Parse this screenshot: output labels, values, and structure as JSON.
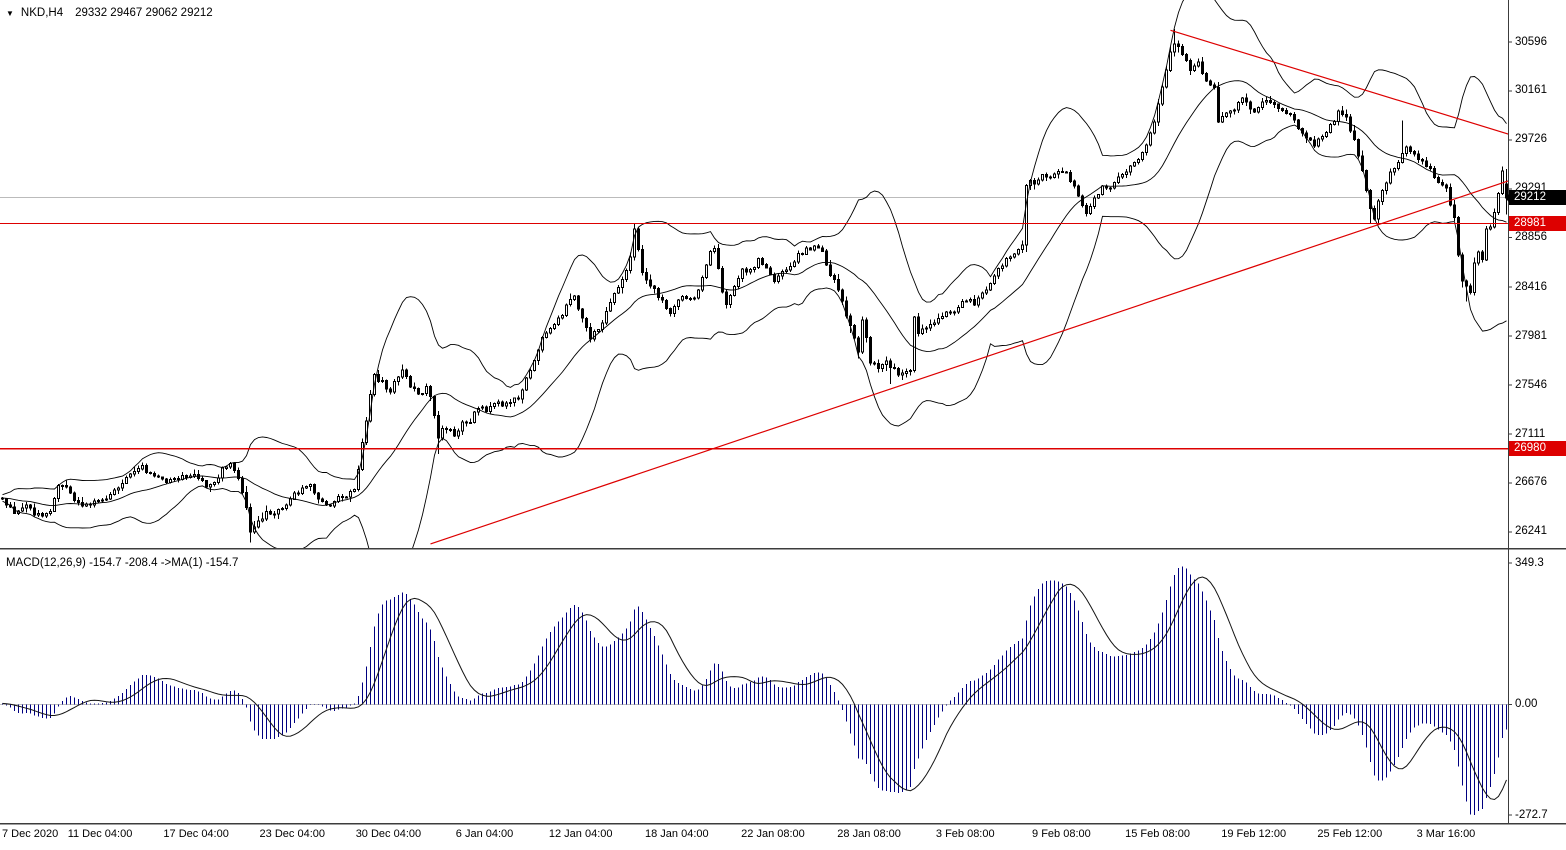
{
  "header": {
    "marker": "▼",
    "symbol": "NKD,H4",
    "open": "29332",
    "high": "29467",
    "low": "29062",
    "close": "29212"
  },
  "macd_panel": {
    "label": "MACD(12,26,9) -154.7 -208.4  ->MA(1) -154.7",
    "axis_labels": [
      "349.3",
      "0.00",
      "-272.7"
    ],
    "axis_values": [
      349.3,
      0,
      -272.7
    ]
  },
  "price_axis": {
    "labels": [
      30596,
      30161,
      29726,
      29291,
      28856,
      28416,
      27981,
      27546,
      27111,
      26676,
      26241
    ]
  },
  "price_markers": {
    "current": {
      "text": "29212",
      "value": 29212
    },
    "levels": [
      {
        "text": "28981",
        "value": 28981
      },
      {
        "text": "26980",
        "value": 26980
      }
    ]
  },
  "time_axis": [
    "7 Dec 2020",
    "11 Dec 04:00",
    "17 Dec 04:00",
    "23 Dec 04:00",
    "30 Dec 04:00",
    "6 Jan 04:00",
    "12 Jan 04:00",
    "18 Jan 04:00",
    "22 Jan 08:00",
    "28 Jan 08:00",
    "3 Feb 08:00",
    "9 Feb 08:00",
    "15 Feb 08:00",
    "19 Feb 12:00",
    "25 Feb 12:00",
    "3 Mar 16:00"
  ],
  "colors": {
    "up_candle": "#ffffff",
    "down_candle": "#000000",
    "outline": "#000000",
    "band": "#000000",
    "level_line": "#dd0000",
    "trendline": "#dd0000",
    "current_line": "#bbbbbb",
    "macd_hist": "#000080",
    "macd_signal": "#141414",
    "marker_current_bg": "#000000",
    "marker_level_bg": "#dd0000"
  },
  "chart_data": {
    "type": "candlestick",
    "symbol": "NKD",
    "timeframe": "H4",
    "bars": 377,
    "last_ohlc": [
      29332,
      29467,
      29062,
      29212
    ],
    "ylim": [
      26143,
      30711
    ],
    "macd_params": {
      "fast": 12,
      "slow": 26,
      "signal": 9
    },
    "levels": [
      28981,
      26980
    ],
    "current_price": 29212,
    "trendlines": [
      {
        "i1": 107,
        "p1": 26134,
        "i2": 378,
        "p2": 29380
      },
      {
        "i1": 292,
        "p1": 30700,
        "i2": 378,
        "p2": 29760
      }
    ],
    "spike_highs": [
      [
        158,
        28985
      ],
      [
        293,
        30710
      ],
      [
        350,
        29900
      ]
    ],
    "spike_lows": [
      [
        62,
        26145
      ],
      [
        109,
        26935
      ],
      [
        222,
        27555
      ],
      [
        342,
        28987
      ],
      [
        366,
        28287
      ]
    ],
    "close_anchors": [
      [
        0,
        26540
      ],
      [
        3,
        26420
      ],
      [
        6,
        26470
      ],
      [
        9,
        26380
      ],
      [
        12,
        26420
      ],
      [
        14,
        26680
      ],
      [
        16,
        26640
      ],
      [
        18,
        26500
      ],
      [
        21,
        26480
      ],
      [
        24,
        26510
      ],
      [
        27,
        26560
      ],
      [
        30,
        26680
      ],
      [
        33,
        26780
      ],
      [
        35,
        26820
      ],
      [
        38,
        26760
      ],
      [
        41,
        26690
      ],
      [
        43,
        26710
      ],
      [
        46,
        26750
      ],
      [
        49,
        26730
      ],
      [
        51,
        26640
      ],
      [
        53,
        26680
      ],
      [
        55,
        26780
      ],
      [
        57,
        26850
      ],
      [
        59,
        26740
      ],
      [
        61,
        26430
      ],
      [
        62,
        26250
      ],
      [
        64,
        26330
      ],
      [
        66,
        26400
      ],
      [
        68,
        26390
      ],
      [
        71,
        26500
      ],
      [
        74,
        26600
      ],
      [
        77,
        26640
      ],
      [
        79,
        26540
      ],
      [
        81,
        26470
      ],
      [
        83,
        26520
      ],
      [
        86,
        26560
      ],
      [
        88,
        26630
      ],
      [
        89,
        26800
      ],
      [
        90,
        27000
      ],
      [
        91,
        27250
      ],
      [
        92,
        27480
      ],
      [
        93,
        27620
      ],
      [
        95,
        27560
      ],
      [
        97,
        27500
      ],
      [
        99,
        27620
      ],
      [
        100,
        27660
      ],
      [
        102,
        27550
      ],
      [
        104,
        27480
      ],
      [
        106,
        27520
      ],
      [
        107,
        27450
      ],
      [
        108,
        27280
      ],
      [
        109,
        27090
      ],
      [
        111,
        27150
      ],
      [
        113,
        27100
      ],
      [
        115,
        27200
      ],
      [
        117,
        27220
      ],
      [
        119,
        27350
      ],
      [
        121,
        27310
      ],
      [
        123,
        27400
      ],
      [
        125,
        27340
      ],
      [
        127,
        27420
      ],
      [
        129,
        27450
      ],
      [
        131,
        27600
      ],
      [
        133,
        27750
      ],
      [
        135,
        27950
      ],
      [
        137,
        28050
      ],
      [
        139,
        28150
      ],
      [
        141,
        28250
      ],
      [
        143,
        28330
      ],
      [
        145,
        28150
      ],
      [
        147,
        27980
      ],
      [
        149,
        28050
      ],
      [
        151,
        28200
      ],
      [
        153,
        28350
      ],
      [
        155,
        28450
      ],
      [
        157,
        28700
      ],
      [
        158,
        28930
      ],
      [
        159,
        28750
      ],
      [
        160,
        28580
      ],
      [
        162,
        28450
      ],
      [
        164,
        28350
      ],
      [
        166,
        28250
      ],
      [
        167,
        28180
      ],
      [
        169,
        28280
      ],
      [
        171,
        28350
      ],
      [
        173,
        28320
      ],
      [
        175,
        28500
      ],
      [
        177,
        28700
      ],
      [
        178,
        28740
      ],
      [
        180,
        28350
      ],
      [
        181,
        28230
      ],
      [
        183,
        28440
      ],
      [
        185,
        28600
      ],
      [
        187,
        28550
      ],
      [
        189,
        28650
      ],
      [
        191,
        28600
      ],
      [
        193,
        28450
      ],
      [
        195,
        28550
      ],
      [
        197,
        28620
      ],
      [
        199,
        28700
      ],
      [
        201,
        28740
      ],
      [
        203,
        28780
      ],
      [
        205,
        28720
      ],
      [
        207,
        28550
      ],
      [
        209,
        28400
      ],
      [
        211,
        28150
      ],
      [
        213,
        27950
      ],
      [
        214,
        27800
      ],
      [
        215,
        28150
      ],
      [
        216,
        27950
      ],
      [
        217,
        27750
      ],
      [
        219,
        27680
      ],
      [
        221,
        27780
      ],
      [
        223,
        27680
      ],
      [
        225,
        27620
      ],
      [
        227,
        27700
      ],
      [
        228,
        28150
      ],
      [
        229,
        28000
      ],
      [
        231,
        28080
      ],
      [
        233,
        28120
      ],
      [
        235,
        28160
      ],
      [
        237,
        28160
      ],
      [
        239,
        28260
      ],
      [
        241,
        28320
      ],
      [
        243,
        28260
      ],
      [
        245,
        28360
      ],
      [
        247,
        28460
      ],
      [
        249,
        28560
      ],
      [
        251,
        28660
      ],
      [
        253,
        28740
      ],
      [
        255,
        28820
      ],
      [
        256,
        29350
      ],
      [
        258,
        29320
      ],
      [
        260,
        29420
      ],
      [
        262,
        29370
      ],
      [
        264,
        29450
      ],
      [
        266,
        29420
      ],
      [
        268,
        29330
      ],
      [
        270,
        29150
      ],
      [
        271,
        29080
      ],
      [
        273,
        29220
      ],
      [
        275,
        29310
      ],
      [
        277,
        29280
      ],
      [
        279,
        29400
      ],
      [
        281,
        29440
      ],
      [
        283,
        29500
      ],
      [
        285,
        29620
      ],
      [
        287,
        29800
      ],
      [
        289,
        30050
      ],
      [
        291,
        30350
      ],
      [
        293,
        30600
      ],
      [
        295,
        30480
      ],
      [
        297,
        30330
      ],
      [
        299,
        30420
      ],
      [
        301,
        30280
      ],
      [
        303,
        30200
      ],
      [
        304,
        29870
      ],
      [
        306,
        29960
      ],
      [
        308,
        30020
      ],
      [
        310,
        30100
      ],
      [
        312,
        30020
      ],
      [
        314,
        29980
      ],
      [
        316,
        30080
      ],
      [
        318,
        30040
      ],
      [
        320,
        30000
      ],
      [
        322,
        29950
      ],
      [
        324,
        29840
      ],
      [
        326,
        29750
      ],
      [
        328,
        29680
      ],
      [
        330,
        29740
      ],
      [
        332,
        29860
      ],
      [
        334,
        29990
      ],
      [
        336,
        29900
      ],
      [
        338,
        29700
      ],
      [
        340,
        29440
      ],
      [
        342,
        29100
      ],
      [
        343,
        29060
      ],
      [
        345,
        29260
      ],
      [
        347,
        29420
      ],
      [
        349,
        29520
      ],
      [
        351,
        29650
      ],
      [
        353,
        29580
      ],
      [
        355,
        29530
      ],
      [
        357,
        29460
      ],
      [
        359,
        29370
      ],
      [
        361,
        29290
      ],
      [
        363,
        29000
      ],
      [
        364,
        28700
      ],
      [
        365,
        28480
      ],
      [
        366,
        28430
      ],
      [
        367,
        28420
      ],
      [
        368,
        28620
      ],
      [
        369,
        28720
      ],
      [
        370,
        28660
      ],
      [
        371,
        28900
      ],
      [
        372,
        28960
      ],
      [
        373,
        29100
      ],
      [
        374,
        29260
      ],
      [
        375,
        29430
      ],
      [
        376,
        29212
      ]
    ],
    "vol_anchors": [
      [
        0,
        42
      ],
      [
        58,
        42
      ],
      [
        61,
        65
      ],
      [
        63,
        60
      ],
      [
        86,
        38
      ],
      [
        89,
        70
      ],
      [
        93,
        70
      ],
      [
        96,
        45
      ],
      [
        107,
        42
      ],
      [
        109,
        55
      ],
      [
        116,
        45
      ],
      [
        130,
        45
      ],
      [
        136,
        55
      ],
      [
        143,
        50
      ],
      [
        150,
        45
      ],
      [
        156,
        55
      ],
      [
        159,
        60
      ],
      [
        168,
        48
      ],
      [
        178,
        50
      ],
      [
        181,
        55
      ],
      [
        186,
        40
      ],
      [
        204,
        34
      ],
      [
        208,
        50
      ],
      [
        213,
        60
      ],
      [
        218,
        58
      ],
      [
        227,
        50
      ],
      [
        229,
        55
      ],
      [
        245,
        40
      ],
      [
        254,
        45
      ],
      [
        256,
        60
      ],
      [
        258,
        45
      ],
      [
        270,
        45
      ],
      [
        283,
        42
      ],
      [
        287,
        60
      ],
      [
        293,
        65
      ],
      [
        298,
        50
      ],
      [
        304,
        55
      ],
      [
        322,
        45
      ],
      [
        330,
        48
      ],
      [
        338,
        52
      ],
      [
        342,
        60
      ],
      [
        348,
        50
      ],
      [
        355,
        42
      ],
      [
        361,
        45
      ],
      [
        363,
        70
      ],
      [
        367,
        70
      ],
      [
        369,
        55
      ],
      [
        374,
        50
      ],
      [
        376,
        45
      ]
    ]
  }
}
